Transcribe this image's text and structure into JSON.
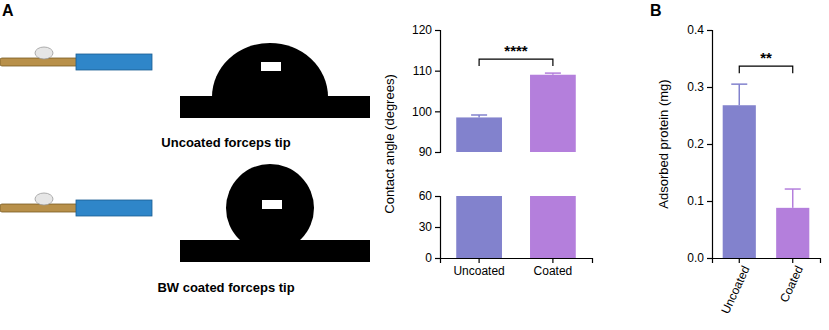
{
  "panel_labels": [
    "A",
    "B"
  ],
  "images": [
    {
      "caption": "Uncoated forceps tip"
    },
    {
      "caption": "BW coated forceps tip"
    }
  ],
  "chart_data": [
    {
      "type": "bar",
      "y_label": "Contact angle (degrees)",
      "categories": [
        "Uncoated",
        "Coated"
      ],
      "values": [
        98.5,
        109
      ],
      "errors": [
        0.6,
        0.4
      ],
      "colors": [
        "#8282cd",
        "#b47fdc"
      ],
      "ylim": [
        0,
        120
      ],
      "yticks": [
        0,
        30,
        60,
        90,
        100,
        110,
        120
      ],
      "axis_break": [
        60,
        90
      ],
      "annotations": [
        {
          "text": "****"
        }
      ]
    },
    {
      "type": "bar",
      "y_label": "Adsorbed protein (mg)",
      "categories": [
        "Uncoated",
        "Coated"
      ],
      "values": [
        0.268,
        0.088
      ],
      "errors": [
        0.037,
        0.033
      ],
      "colors": [
        "#8282cd",
        "#b47fdc"
      ],
      "ylim": [
        0,
        0.4
      ],
      "yticks": [
        {
          "value": 0,
          "label": "0.0"
        },
        0.1,
        0.2,
        0.3,
        0.4
      ],
      "annotations": [
        {
          "text": "**"
        }
      ]
    }
  ]
}
